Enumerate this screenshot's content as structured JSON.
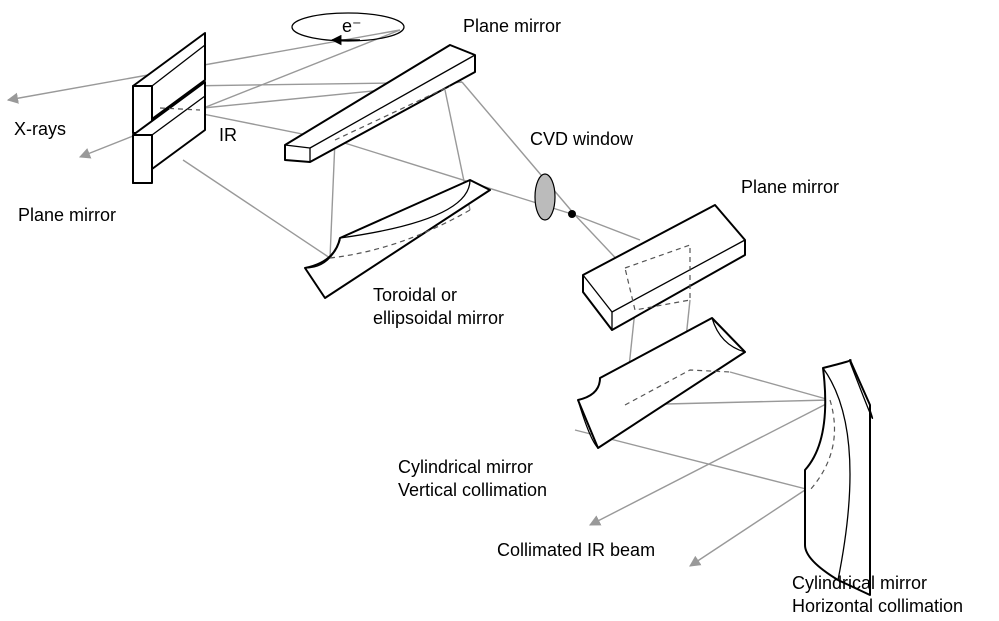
{
  "labels": {
    "electron": "e⁻",
    "xrays": "X-rays",
    "ir": "IR",
    "plane_mirror_1": "Plane mirror",
    "plane_mirror_top": "Plane mirror",
    "cvd_window": "CVD window",
    "plane_mirror_right": "Plane mirror",
    "toroidal_line1": "Toroidal or",
    "toroidal_line2": "ellipsoidal mirror",
    "cyl_vert_line1": "Cylindrical mirror",
    "cyl_vert_line2": "Vertical collimation",
    "collimated_beam": "Collimated IR beam",
    "cyl_horiz_line1": "Cylindrical mirror",
    "cyl_horiz_line2": "Horizontal collimation"
  },
  "colors": {
    "beam": "#999999",
    "outline": "#000000",
    "window_fill": "#bbbbbb"
  }
}
